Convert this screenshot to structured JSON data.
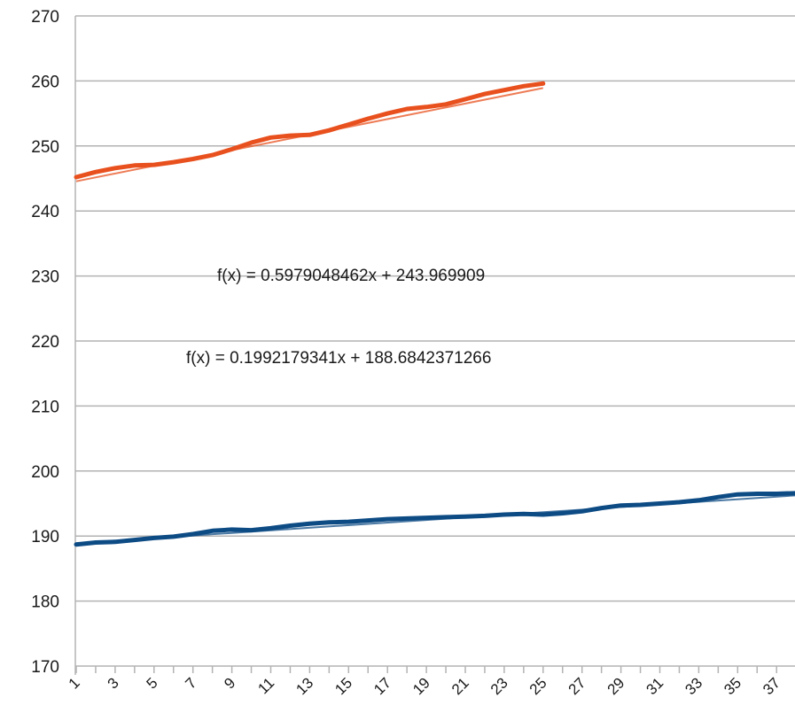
{
  "chart_data": {
    "type": "line",
    "title": "",
    "xlabel": "",
    "ylabel": "",
    "ylim": [
      170,
      270
    ],
    "yticks": [
      170,
      180,
      190,
      200,
      210,
      220,
      230,
      240,
      250,
      260,
      270
    ],
    "x": [
      1,
      2,
      3,
      4,
      5,
      6,
      7,
      8,
      9,
      10,
      11,
      12,
      13,
      14,
      15,
      16,
      17,
      18,
      19,
      20,
      21,
      22,
      23,
      24,
      25,
      26,
      27,
      28,
      29,
      30,
      31,
      32,
      33,
      34,
      35,
      36,
      37,
      38
    ],
    "xtick_labels": [
      "1",
      "3",
      "5",
      "7",
      "9",
      "11",
      "13",
      "15",
      "17",
      "19",
      "21",
      "23",
      "25",
      "27",
      "29",
      "31",
      "33",
      "35",
      "37"
    ],
    "grid": true,
    "series": [
      {
        "color": "#e8501e",
        "x": [
          1,
          2,
          3,
          4,
          5,
          6,
          7,
          8,
          9,
          10,
          11,
          12,
          13,
          14,
          15,
          16,
          17,
          18,
          19,
          20,
          21,
          22,
          23,
          24,
          25
        ],
        "values": [
          245.2,
          246.0,
          246.6,
          247.0,
          247.1,
          247.5,
          248.0,
          248.6,
          249.5,
          250.5,
          251.3,
          251.6,
          251.7,
          252.4,
          253.3,
          254.2,
          255.0,
          255.7,
          256.0,
          256.4,
          257.2,
          258.0,
          258.6,
          259.2,
          259.6
        ],
        "trendline": {
          "slope": 0.5979048462,
          "intercept": 243.969909,
          "label": "f(x) = 0.5979048462x + 243.969909"
        }
      },
      {
        "color": "#0d4b84",
        "x": [
          1,
          2,
          3,
          4,
          5,
          6,
          7,
          8,
          9,
          10,
          11,
          12,
          13,
          14,
          15,
          16,
          17,
          18,
          19,
          20,
          21,
          22,
          23,
          24,
          25,
          26,
          27,
          28,
          29,
          30,
          31,
          32,
          33,
          34,
          35,
          36,
          37,
          38
        ],
        "values": [
          188.7,
          189.0,
          189.1,
          189.4,
          189.7,
          189.9,
          190.3,
          190.8,
          191.0,
          190.9,
          191.2,
          191.6,
          191.9,
          192.1,
          192.2,
          192.4,
          192.6,
          192.7,
          192.8,
          192.9,
          193.0,
          193.1,
          193.3,
          193.4,
          193.3,
          193.5,
          193.8,
          194.3,
          194.7,
          194.8,
          195.0,
          195.2,
          195.5,
          196.0,
          196.4,
          196.5,
          196.5,
          196.6
        ],
        "trendline": {
          "slope": 0.1992179341,
          "intercept": 188.6842371266,
          "label": "f(x) = 0.1992179341x + 188.6842371266"
        }
      }
    ]
  }
}
